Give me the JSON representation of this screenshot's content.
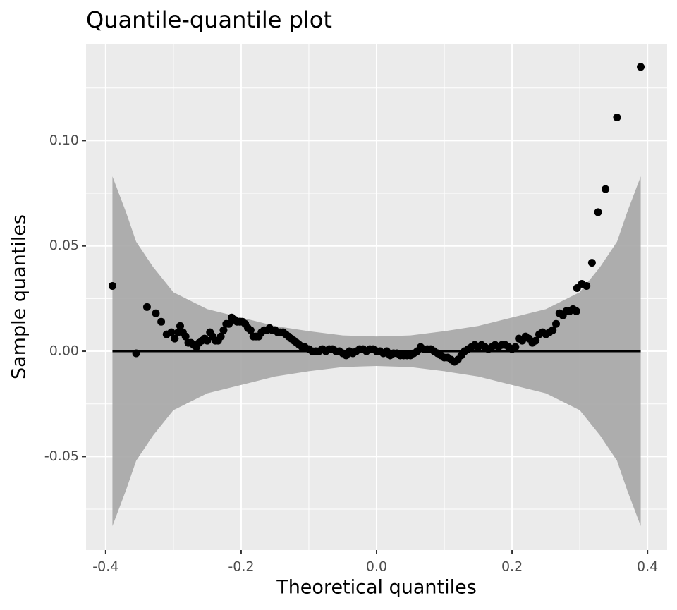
{
  "chart_data": {
    "type": "scatter",
    "title": "Quantile-quantile plot",
    "x_label": "Theoretical quantiles",
    "y_label": "Sample quantiles",
    "xlim": [
      -0.429,
      0.429
    ],
    "ylim": [
      -0.0944,
      0.146
    ],
    "xticks": [
      -0.4,
      -0.2,
      {
        "value": 0,
        "label": "0.0"
      },
      0.2,
      0.4
    ],
    "yticks": [
      -0.05,
      {
        "value": 0,
        "label": "0.00"
      },
      0.05,
      {
        "value": 0.1,
        "label": "0.10"
      }
    ],
    "xminor": [
      -0.3,
      -0.1,
      0.1,
      0.3
    ],
    "yminor": [
      -0.075,
      -0.025,
      0.025,
      0.075,
      0.125
    ],
    "grid": true,
    "band": {
      "color": "#a6a6a6",
      "x": [
        -0.39,
        -0.37,
        -0.355,
        -0.33,
        -0.3,
        -0.25,
        -0.2,
        -0.15,
        -0.1,
        -0.05,
        0,
        0.05,
        0.1,
        0.15,
        0.2,
        0.25,
        0.3,
        0.33,
        0.355,
        0.37,
        0.39
      ],
      "upper": [
        0.083,
        0.066,
        0.052,
        0.04,
        0.028,
        0.02,
        0.016,
        0.012,
        0.0095,
        0.0075,
        0.007,
        0.0075,
        0.0095,
        0.012,
        0.016,
        0.02,
        0.028,
        0.04,
        0.052,
        0.066,
        0.083
      ],
      "lower": [
        -0.083,
        -0.066,
        -0.052,
        -0.04,
        -0.028,
        -0.02,
        -0.016,
        -0.012,
        -0.0095,
        -0.0075,
        -0.007,
        -0.0075,
        -0.0095,
        -0.012,
        -0.016,
        -0.02,
        -0.028,
        -0.04,
        -0.052,
        -0.066,
        -0.083
      ]
    },
    "reference_line": {
      "color": "#000000",
      "x": [
        -0.39,
        0.39
      ],
      "values": [
        0,
        0
      ]
    },
    "points": {
      "color": "#000000",
      "x": [
        -0.39,
        -0.355,
        -0.339,
        -0.326,
        -0.318,
        -0.31,
        -0.303,
        -0.298,
        -0.293,
        -0.29,
        -0.286,
        -0.282,
        -0.278,
        -0.274,
        -0.27,
        -0.266,
        -0.262,
        -0.258,
        -0.254,
        -0.25,
        -0.246,
        -0.242,
        -0.238,
        -0.234,
        -0.23,
        -0.226,
        -0.222,
        -0.218,
        -0.214,
        -0.21,
        -0.206,
        -0.202,
        -0.198,
        -0.194,
        -0.19,
        -0.186,
        -0.182,
        -0.178,
        -0.174,
        -0.17,
        -0.166,
        -0.162,
        -0.158,
        -0.154,
        -0.15,
        -0.146,
        -0.142,
        -0.138,
        -0.134,
        -0.13,
        -0.126,
        -0.122,
        -0.118,
        -0.114,
        -0.11,
        -0.106,
        -0.1,
        -0.095,
        -0.09,
        -0.085,
        -0.08,
        -0.075,
        -0.07,
        -0.065,
        -0.06,
        -0.055,
        -0.05,
        -0.045,
        -0.04,
        -0.035,
        -0.03,
        -0.025,
        -0.02,
        -0.015,
        -0.01,
        -0.005,
        0,
        0.005,
        0.01,
        0.015,
        0.02,
        0.025,
        0.03,
        0.035,
        0.04,
        0.045,
        0.05,
        0.055,
        0.06,
        0.065,
        0.07,
        0.075,
        0.08,
        0.085,
        0.09,
        0.095,
        0.1,
        0.105,
        0.11,
        0.115,
        0.12,
        0.125,
        0.13,
        0.135,
        0.14,
        0.145,
        0.15,
        0.155,
        0.16,
        0.165,
        0.17,
        0.175,
        0.18,
        0.185,
        0.19,
        0.195,
        0.2,
        0.205,
        0.21,
        0.215,
        0.22,
        0.225,
        0.23,
        0.235,
        0.24,
        0.245,
        0.25,
        0.255,
        0.26,
        0.265,
        0.27,
        0.275,
        0.28,
        0.285,
        0.29,
        0.295,
        0.296,
        0.303,
        0.31,
        0.318,
        0.327,
        0.338,
        0.355,
        0.39
      ],
      "y": [
        0.031,
        -0.001,
        0.021,
        0.018,
        0.014,
        0.008,
        0.009,
        0.006,
        0.009,
        0.012,
        0.009,
        0.007,
        0.004,
        0.004,
        0.003,
        0.002,
        0.004,
        0.005,
        0.006,
        0.005,
        0.009,
        0.007,
        0.005,
        0.005,
        0.007,
        0.01,
        0.013,
        0.013,
        0.016,
        0.015,
        0.014,
        0.014,
        0.014,
        0.013,
        0.011,
        0.01,
        0.007,
        0.007,
        0.007,
        0.009,
        0.01,
        0.01,
        0.011,
        0.01,
        0.01,
        0.009,
        0.009,
        0.009,
        0.008,
        0.007,
        0.006,
        0.005,
        0.004,
        0.003,
        0.002,
        0.002,
        0.001,
        0,
        0,
        0,
        0.001,
        0,
        0.001,
        0.001,
        0,
        0,
        -0.001,
        -0.002,
        0,
        -0.001,
        0,
        0.001,
        0.001,
        0,
        0.001,
        0.001,
        0,
        0,
        -0.001,
        0,
        -0.002,
        -0.001,
        -0.001,
        -0.002,
        -0.002,
        -0.002,
        -0.002,
        -0.001,
        0,
        0.002,
        0.001,
        0.001,
        0.001,
        0,
        -0.001,
        -0.002,
        -0.003,
        -0.003,
        -0.004,
        -0.005,
        -0.004,
        -0.002,
        0,
        0.001,
        0.002,
        0.003,
        0.002,
        0.003,
        0.002,
        0.001,
        0.002,
        0.003,
        0.002,
        0.003,
        0.003,
        0.002,
        0.001,
        0.002,
        0.006,
        0.005,
        0.007,
        0.006,
        0.004,
        0.005,
        0.008,
        0.009,
        0.008,
        0.009,
        0.01,
        0.013,
        0.018,
        0.017,
        0.019,
        0.019,
        0.02,
        0.019,
        0.03,
        0.032,
        0.031,
        0.042,
        0.066,
        0.077,
        0.111,
        0.135
      ]
    }
  }
}
